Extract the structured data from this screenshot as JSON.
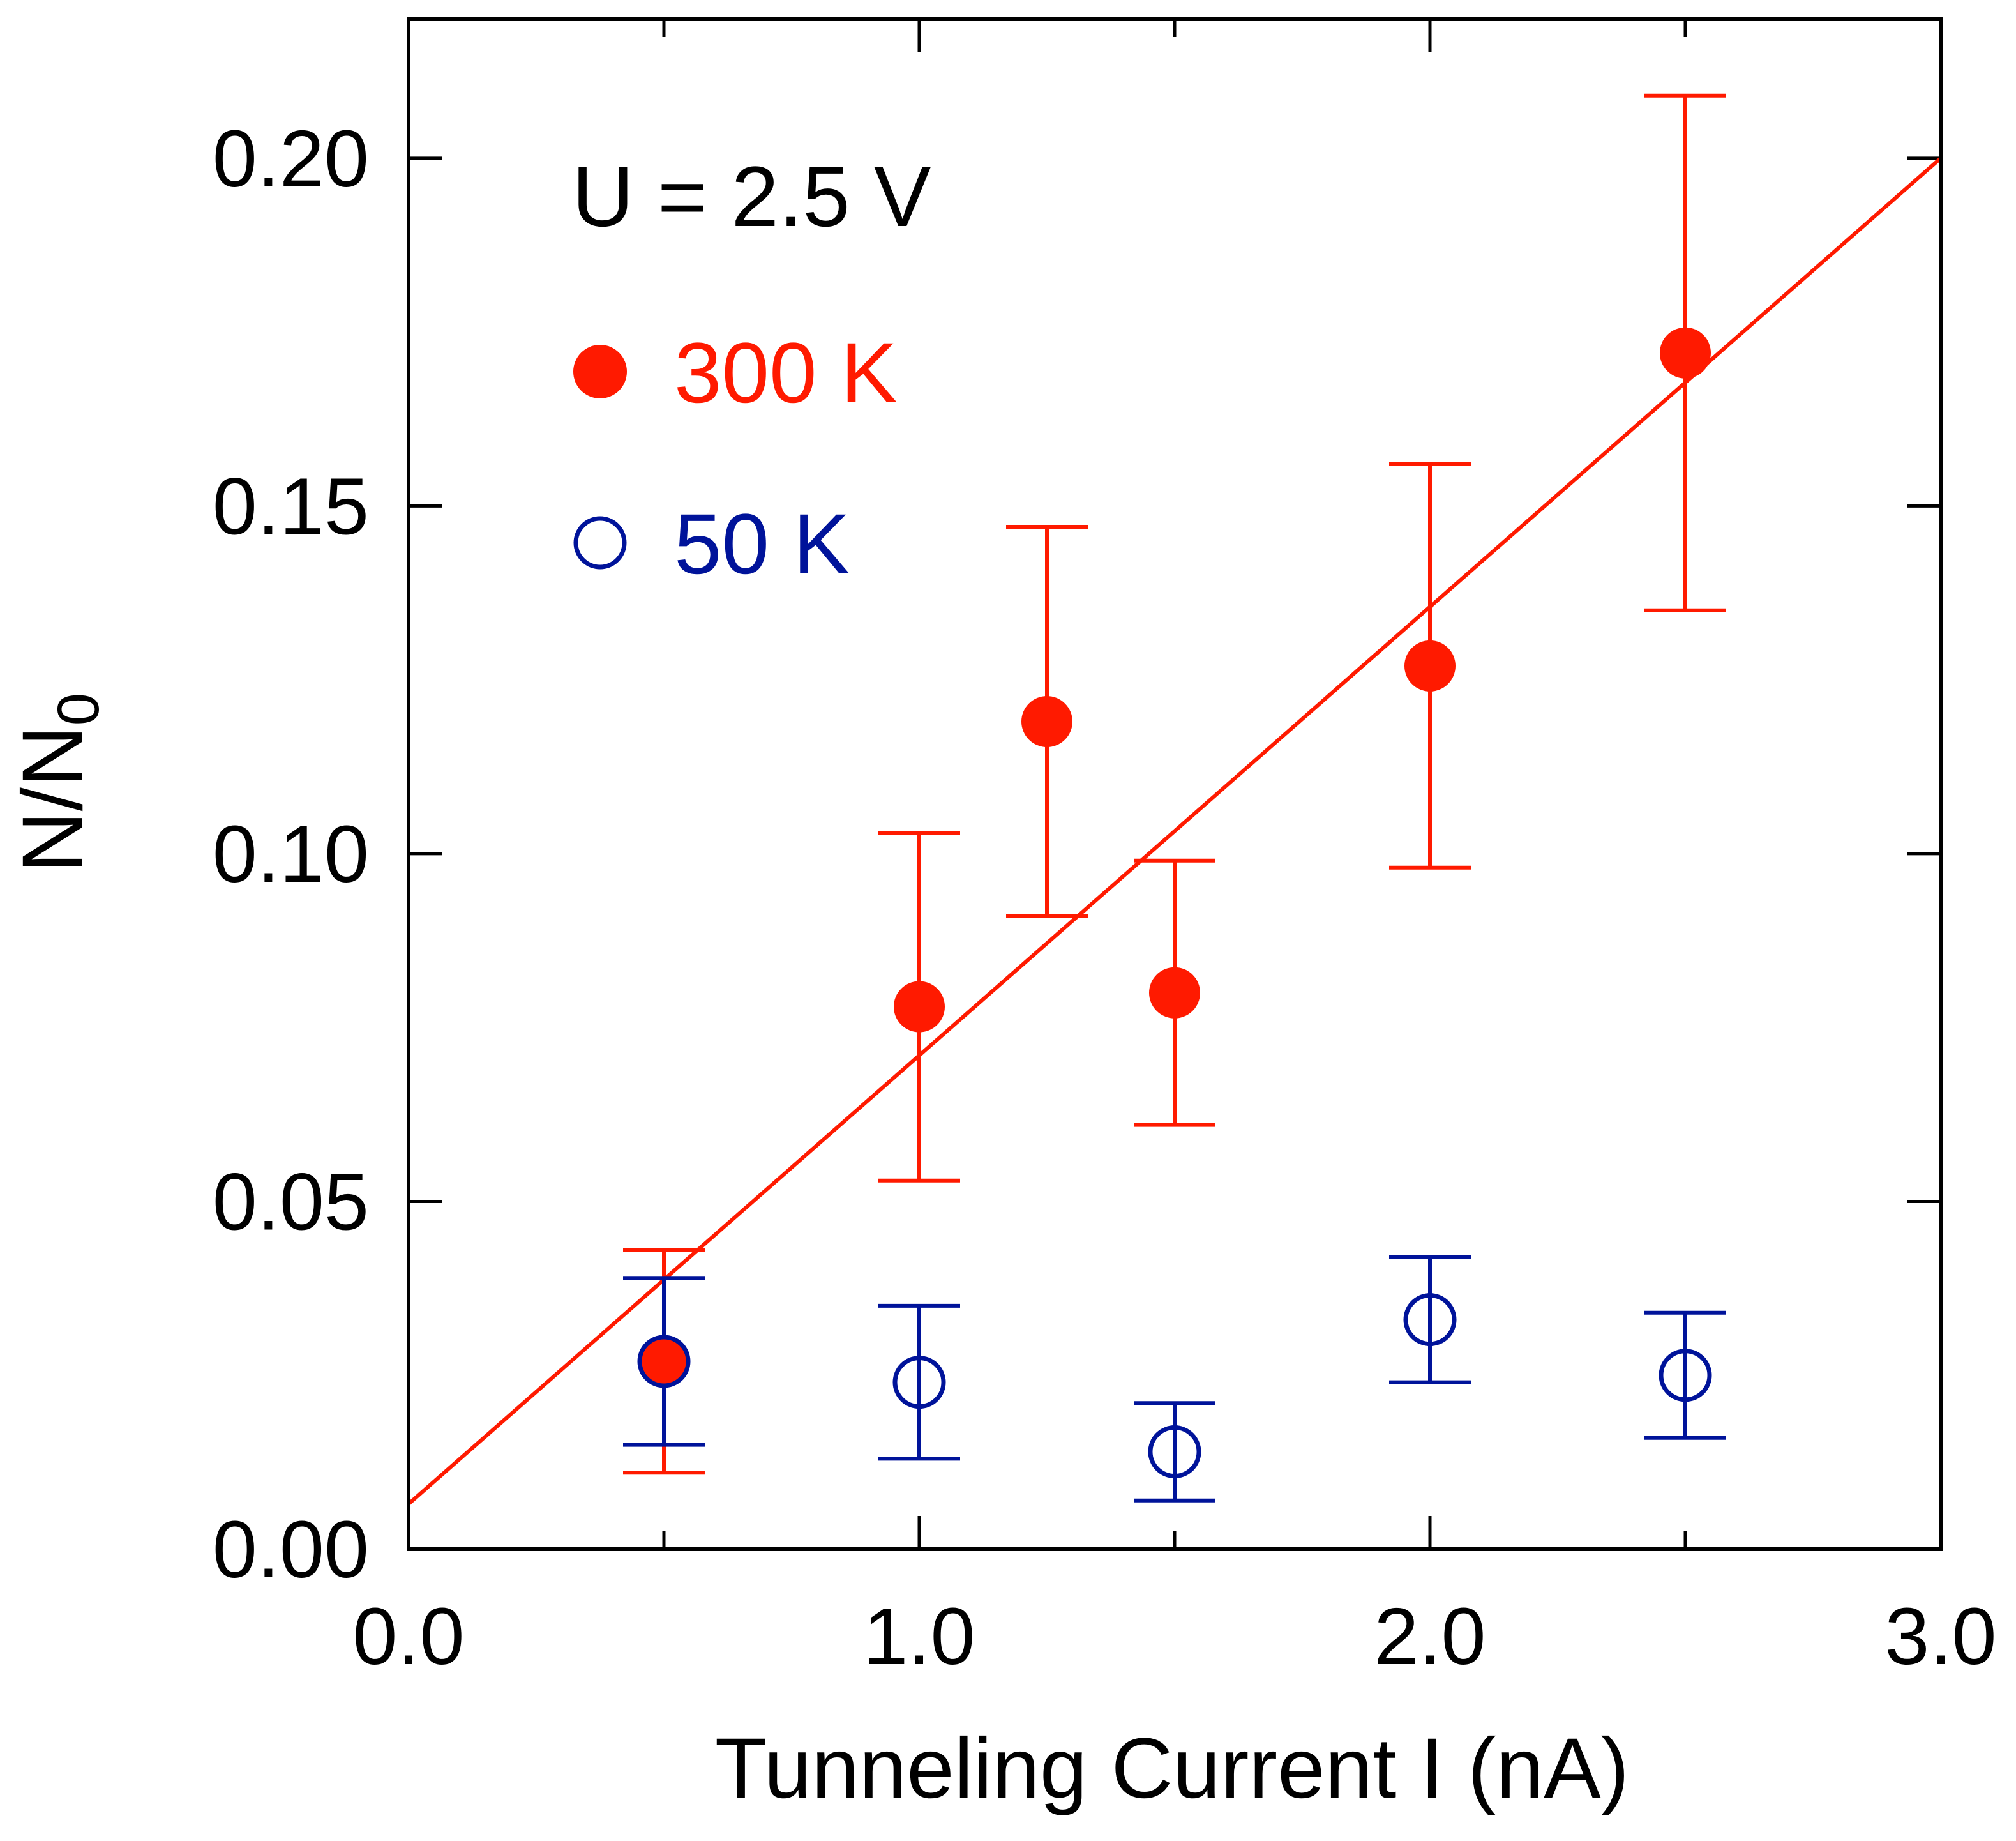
{
  "chart_data": {
    "type": "scatter",
    "title": "",
    "xlabel": "Tunneling Current I (nA)",
    "ylabel": {
      "main": "N/N",
      "subscript": "0"
    },
    "xlim": [
      0.0,
      3.0
    ],
    "ylim": [
      0.0,
      0.22
    ],
    "x_ticks": [
      {
        "value": 0.0,
        "label": "0.0"
      },
      {
        "value": 1.0,
        "label": "1.0"
      },
      {
        "value": 2.0,
        "label": "2.0"
      },
      {
        "value": 3.0,
        "label": "3.0"
      }
    ],
    "x_minor_ticks": [
      0.5,
      1.5,
      2.5
    ],
    "y_ticks": [
      {
        "value": 0.0,
        "label": "0.00"
      },
      {
        "value": 0.05,
        "label": "0.05"
      },
      {
        "value": 0.1,
        "label": "0.10"
      },
      {
        "value": 0.15,
        "label": "0.15"
      },
      {
        "value": 0.2,
        "label": "0.20"
      }
    ],
    "grid": false,
    "annotation": "U = 2.5 V",
    "legend_position": "top-left",
    "series": [
      {
        "name": "300 K",
        "marker": "filled-circle",
        "color": "#ff1a00",
        "points": [
          {
            "x": 0.5,
            "y": 0.027,
            "err_low": 0.011,
            "err_high": 0.043
          },
          {
            "x": 1.0,
            "y": 0.078,
            "err_low": 0.053,
            "err_high": 0.103
          },
          {
            "x": 1.25,
            "y": 0.119,
            "err_low": 0.091,
            "err_high": 0.147
          },
          {
            "x": 1.5,
            "y": 0.08,
            "err_low": 0.061,
            "err_high": 0.099
          },
          {
            "x": 2.0,
            "y": 0.127,
            "err_low": 0.098,
            "err_high": 0.156
          },
          {
            "x": 2.5,
            "y": 0.172,
            "err_low": 0.135,
            "err_high": 0.209
          }
        ],
        "fit_line": {
          "x": [
            0.0,
            3.0
          ],
          "y": [
            0.0065,
            0.2
          ]
        }
      },
      {
        "name": "50 K",
        "marker": "open-circle",
        "color": "#00139a",
        "points": [
          {
            "x": 0.5,
            "y": 0.027,
            "err_low": 0.015,
            "err_high": 0.039
          },
          {
            "x": 1.0,
            "y": 0.024,
            "err_low": 0.013,
            "err_high": 0.035
          },
          {
            "x": 1.5,
            "y": 0.014,
            "err_low": 0.007,
            "err_high": 0.021
          },
          {
            "x": 2.0,
            "y": 0.033,
            "err_low": 0.024,
            "err_high": 0.042
          },
          {
            "x": 2.5,
            "y": 0.025,
            "err_low": 0.016,
            "err_high": 0.034
          }
        ]
      }
    ]
  }
}
